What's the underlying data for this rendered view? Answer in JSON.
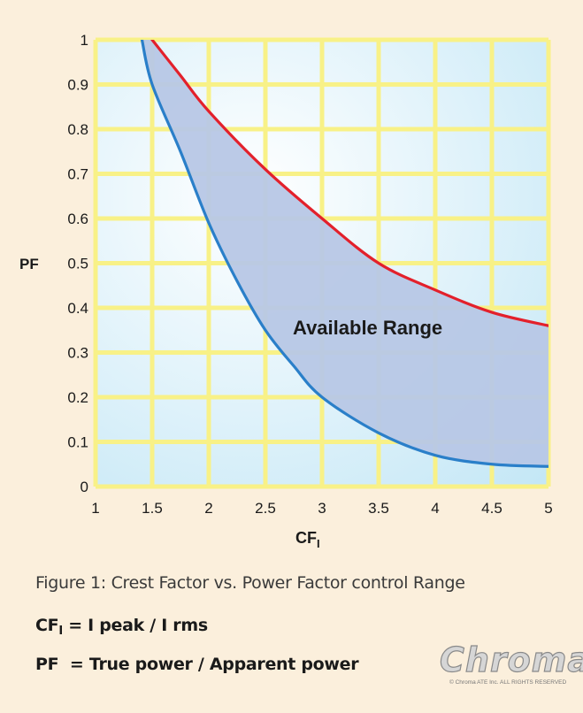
{
  "chart_data": {
    "type": "area",
    "xlabel": "CF",
    "xlabel_sub": "I",
    "ylabel": "PF",
    "xlim": [
      1,
      5
    ],
    "ylim": [
      0,
      1
    ],
    "x_ticks": [
      "1",
      "1.5",
      "2",
      "2.5",
      "3",
      "3.5",
      "4",
      "4.5",
      "5"
    ],
    "y_ticks": [
      "0",
      "0.1",
      "0.2",
      "0.3",
      "0.4",
      "0.5",
      "0.6",
      "0.7",
      "0.8",
      "0.9",
      "1"
    ],
    "grid": true,
    "annotation": "Available Range",
    "series": [
      {
        "color": "#e3202b",
        "x": [
          1.5,
          1.75,
          2.0,
          2.5,
          3.0,
          3.5,
          4.0,
          4.5,
          5.0
        ],
        "values": [
          1.0,
          0.92,
          0.84,
          0.71,
          0.6,
          0.5,
          0.44,
          0.39,
          0.36
        ]
      },
      {
        "color": "#2a7fc9",
        "x": [
          1.41,
          1.5,
          1.75,
          2.0,
          2.25,
          2.5,
          2.75,
          3.0,
          3.5,
          4.0,
          4.5,
          5.0
        ],
        "values": [
          1.0,
          0.9,
          0.75,
          0.59,
          0.46,
          0.35,
          0.27,
          0.2,
          0.12,
          0.07,
          0.05,
          0.045
        ]
      }
    ]
  },
  "caption": "Figure 1: Crest Factor vs. Power Factor control Range",
  "definitions": {
    "cf_label": "CF",
    "cf_sub": "I",
    "cf_text": " = I peak / I rms",
    "pf_text": "PF  = True power / Apparent power"
  },
  "logo": {
    "text": "Chroma",
    "copyright": "© Chroma ATE Inc. ALL RIGHTS RESERVED"
  },
  "colors": {
    "background": "#fbefdc",
    "grid": "#f8f187",
    "range_fill": "#b7c7e6"
  }
}
